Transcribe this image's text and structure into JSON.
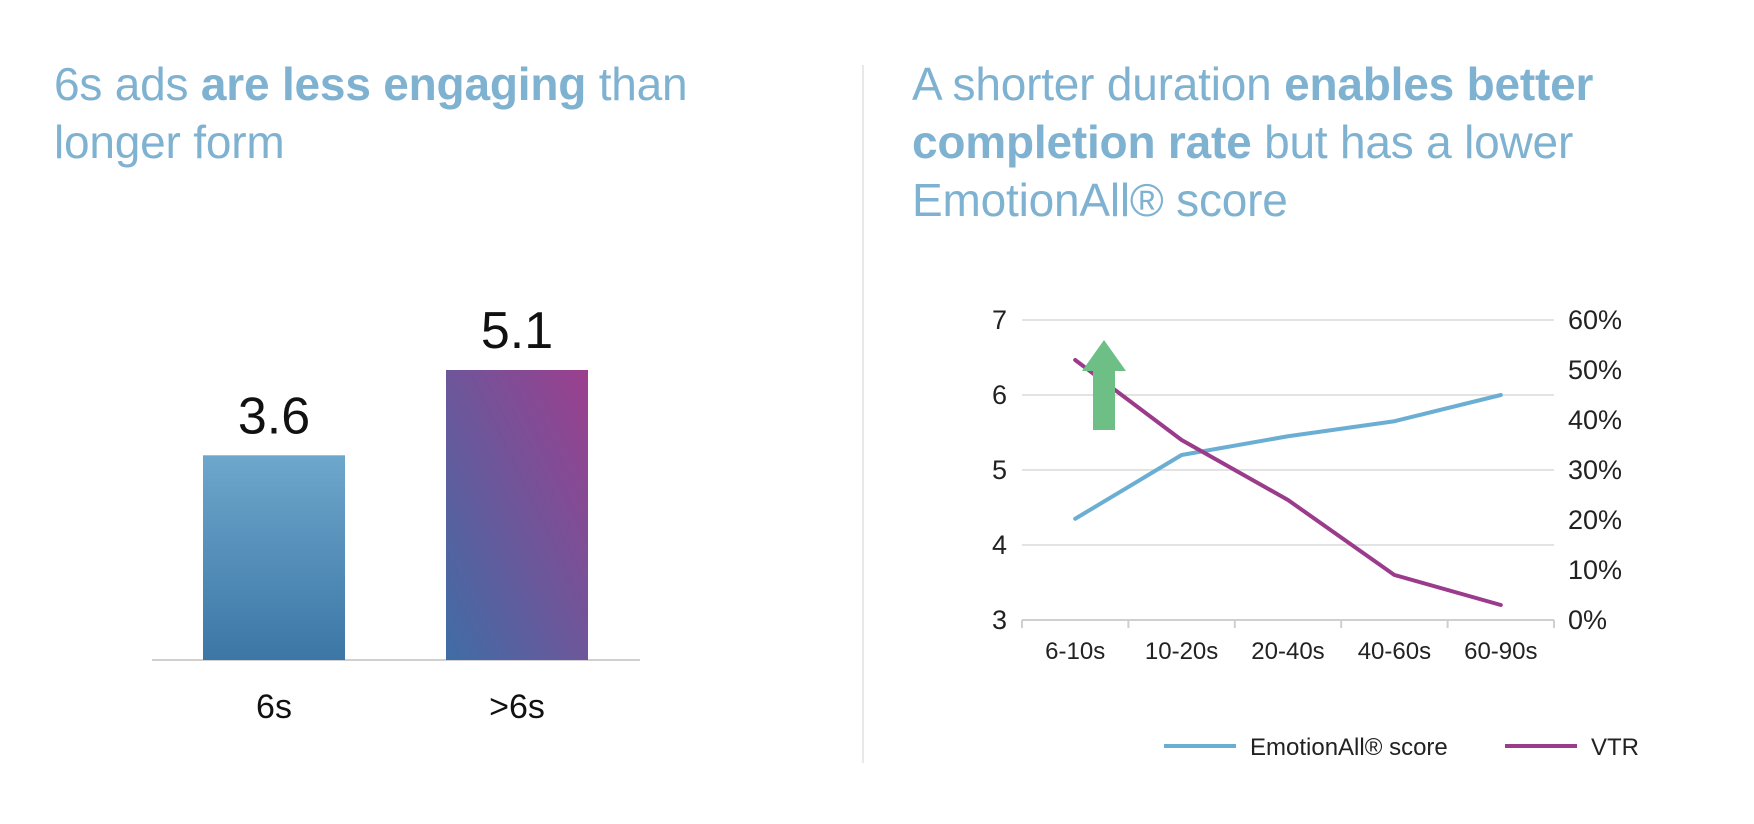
{
  "left_panel": {
    "title_parts": {
      "pre": "6s ads ",
      "bold": "are less engaging",
      "post": " than longer form"
    }
  },
  "right_panel": {
    "title_parts": {
      "pre": "A shorter duration ",
      "bold": "enables better completion rate",
      "post": " but has a lower EmotionAll® score"
    }
  },
  "colors": {
    "title": "#7fb2d1",
    "emotionall_line": "#6aaed3",
    "vtr_line": "#9b3b8c",
    "arrow": "#6dbf86",
    "bar_6s_top": "#6da7cc",
    "bar_6s_bottom": "#3c76a6",
    "bar_gt6s_top": "#9c3f8e",
    "bar_gt6s_bottom": "#3f6da6"
  },
  "chart_data": [
    {
      "type": "bar",
      "categories": [
        "6s",
        ">6s"
      ],
      "values": [
        3.6,
        5.1
      ],
      "value_labels": [
        "3.6",
        "5.1"
      ],
      "title": "",
      "xlabel": "",
      "ylabel": "",
      "ylim": [
        0,
        5.1
      ],
      "grid": false
    },
    {
      "type": "line",
      "categories": [
        "6-10s",
        "10-20s",
        "20-40s",
        "40-60s",
        "60-90s"
      ],
      "series": [
        {
          "name": "EmotionAll® score",
          "axis": "left",
          "values": [
            4.35,
            5.2,
            5.45,
            5.65,
            6.0
          ]
        },
        {
          "name": "VTR",
          "axis": "right",
          "values": [
            52,
            36,
            24,
            9,
            3
          ]
        }
      ],
      "y_left": {
        "ylim": [
          3,
          7
        ],
        "ticks": [
          "3",
          "4",
          "5",
          "6",
          "7"
        ]
      },
      "y_right": {
        "ylim": [
          0,
          60
        ],
        "ticks": [
          "0%",
          "10%",
          "20%",
          "30%",
          "40%",
          "50%",
          "60%"
        ]
      },
      "grid": true,
      "legend_position": "bottom-right",
      "annotation": "up-arrow"
    }
  ]
}
